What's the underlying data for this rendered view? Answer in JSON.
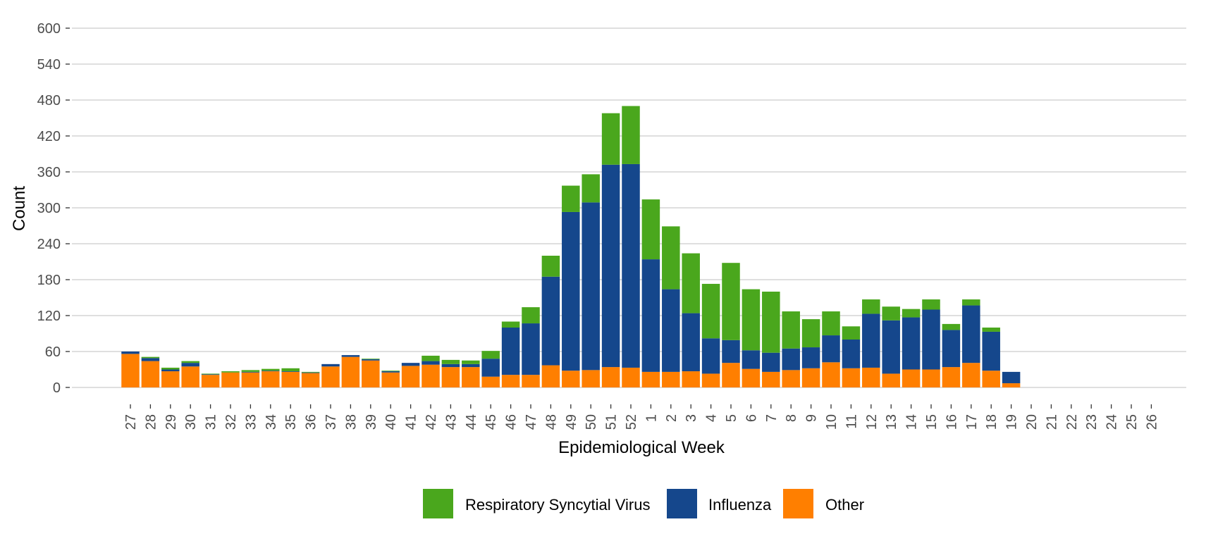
{
  "chart_data": {
    "type": "bar",
    "stacked": true,
    "xlabel": "Epidemiological Week",
    "ylabel": "Count",
    "ylim": [
      0,
      600
    ],
    "yticks": [
      0,
      60,
      120,
      180,
      240,
      300,
      360,
      420,
      480,
      540,
      600
    ],
    "grid": true,
    "legend_position": "bottom",
    "categories": [
      "27",
      "28",
      "29",
      "30",
      "31",
      "32",
      "33",
      "34",
      "35",
      "36",
      "37",
      "38",
      "39",
      "40",
      "41",
      "42",
      "43",
      "44",
      "45",
      "46",
      "47",
      "48",
      "49",
      "50",
      "51",
      "52",
      "1",
      "2",
      "3",
      "4",
      "5",
      "6",
      "7",
      "8",
      "9",
      "10",
      "11",
      "12",
      "13",
      "14",
      "15",
      "16",
      "17",
      "18",
      "19",
      "20",
      "21",
      "22",
      "23",
      "24",
      "25",
      "26"
    ],
    "series": [
      {
        "name": "Other",
        "color": "#ff7f00",
        "values": [
          56,
          44,
          27,
          35,
          21,
          25,
          25,
          27,
          26,
          24,
          35,
          51,
          45,
          25,
          36,
          38,
          34,
          34,
          18,
          21,
          21,
          37,
          28,
          29,
          34,
          33,
          26,
          26,
          27,
          23,
          41,
          31,
          26,
          29,
          32,
          42,
          32,
          33,
          23,
          30,
          30,
          34,
          41,
          28,
          7,
          0,
          0,
          0,
          0,
          0,
          0,
          0
        ]
      },
      {
        "name": "Influenza",
        "color": "#15478c",
        "values": [
          4,
          5,
          3,
          6,
          1,
          0,
          1,
          1,
          1,
          1,
          4,
          3,
          2,
          2,
          5,
          6,
          5,
          5,
          30,
          79,
          86,
          148,
          265,
          280,
          338,
          340,
          188,
          138,
          97,
          59,
          38,
          31,
          32,
          36,
          35,
          45,
          48,
          90,
          89,
          87,
          100,
          62,
          96,
          65,
          19,
          0,
          0,
          0,
          0,
          0,
          0,
          0
        ]
      },
      {
        "name": "Respiratory Syncytial Virus",
        "color": "#4aa71d",
        "values": [
          0,
          2,
          3,
          3,
          1,
          2,
          3,
          3,
          5,
          1,
          0,
          0,
          1,
          1,
          0,
          9,
          7,
          6,
          13,
          10,
          27,
          35,
          44,
          47,
          86,
          97,
          100,
          105,
          100,
          91,
          129,
          102,
          102,
          62,
          47,
          40,
          22,
          24,
          23,
          14,
          17,
          10,
          10,
          7,
          0,
          0,
          0,
          0,
          0,
          0,
          0,
          0
        ]
      }
    ],
    "legend": [
      {
        "name": "Respiratory Syncytial Virus",
        "color": "#4aa71d"
      },
      {
        "name": "Influenza",
        "color": "#15478c"
      },
      {
        "name": "Other",
        "color": "#ff7f00"
      }
    ]
  }
}
